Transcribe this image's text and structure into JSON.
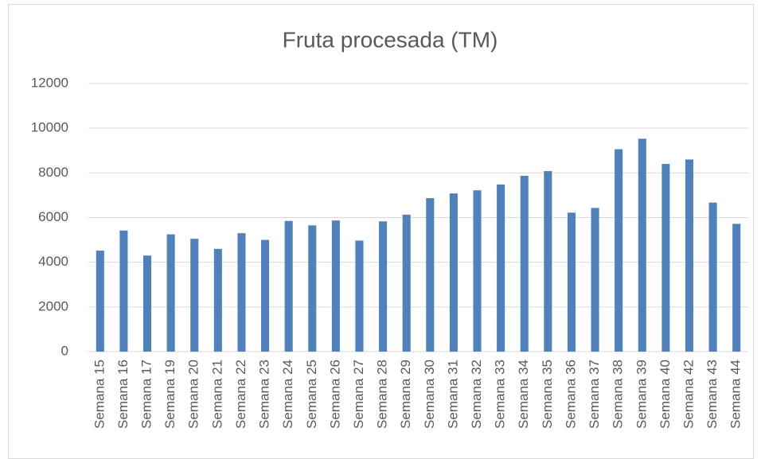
{
  "chart_data": {
    "type": "bar",
    "title": "Fruta procesada (TM)",
    "categories": [
      "Semana 15",
      "Semana 16",
      "Semana 17",
      "Semana 19",
      "Semana 20",
      "Semana 21",
      "Semana 22",
      "Semana 23",
      "Semana 24",
      "Semana 25",
      "Semana 26",
      "Semana 27",
      "Semana 28",
      "Semana 29",
      "Semana 30",
      "Semana 31",
      "Semana 32",
      "Semana 33",
      "Semana 34",
      "Semana 35",
      "Semana 36",
      "Semana 37",
      "Semana 38",
      "Semana 39",
      "Semana 40",
      "Semana 42",
      "Semana 43",
      "Semana 44"
    ],
    "values": [
      4520,
      5420,
      4300,
      5250,
      5050,
      4600,
      5300,
      5000,
      5850,
      5650,
      5870,
      4970,
      5830,
      6130,
      6870,
      7080,
      7220,
      7480,
      7870,
      8080,
      6220,
      6430,
      9060,
      9530,
      8400,
      8600,
      6670,
      5720
    ],
    "color": "#4f81bd",
    "ylim": [
      0,
      12000
    ],
    "yticks": [
      0,
      2000,
      4000,
      6000,
      8000,
      10000,
      12000
    ],
    "grid": true
  }
}
